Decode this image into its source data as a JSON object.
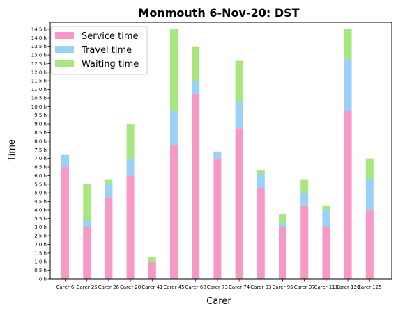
{
  "chart_data": {
    "type": "bar",
    "stacked": true,
    "title": "Monmouth 6-Nov-20: DST",
    "xlabel": "Carer",
    "ylabel": "Time",
    "ylim": [
      0,
      14.9
    ],
    "y_ticks": [
      0,
      0.5,
      1,
      1.5,
      2,
      2.5,
      3,
      3.5,
      4,
      4.5,
      5,
      5.5,
      6,
      6.5,
      7,
      7.5,
      8,
      8.5,
      9,
      9.5,
      10,
      10.5,
      11,
      11.5,
      12,
      12.5,
      13,
      13.5,
      14,
      14.5
    ],
    "y_tick_labels": [
      "0 h",
      "0.5 h",
      "1.0 h",
      "1.5 h",
      "2.0 h",
      "2.5 h",
      "3.0 h",
      "3.5 h",
      "4.0 h",
      "4.5 h",
      "5.0 h",
      "5.5 h",
      "6.0 h",
      "6.5 h",
      "7.0 h",
      "7.5 h",
      "8.0 h",
      "8.5 h",
      "9.0 h",
      "9.5 h",
      "10.0 h",
      "10.5 h",
      "11.0 h",
      "11.5 h",
      "12.0 h",
      "12.5 h",
      "13.0 h",
      "13.5 h",
      "14.0 h",
      "14.5 h"
    ],
    "categories": [
      "Carer 6",
      "Carer 25",
      "Carer 26",
      "Carer 28",
      "Carer 41",
      "Carer 45",
      "Carer 68",
      "Carer 73",
      "Carer 74",
      "Carer 93",
      "Carer 95",
      "Carer 97",
      "Carer 113",
      "Carer 120",
      "Carer 125"
    ],
    "series": [
      {
        "name": "Service time",
        "color": "#f799c6",
        "values": [
          6.5,
          3.0,
          4.75,
          6.0,
          1.0,
          7.75,
          10.75,
          7.0,
          8.75,
          5.25,
          3.0,
          4.25,
          3.0,
          9.75,
          4.0
        ]
      },
      {
        "name": "Travel time",
        "color": "#99d1f7",
        "values": [
          0.7,
          0.4,
          0.75,
          1.0,
          0.0,
          2.0,
          0.75,
          0.4,
          1.55,
          0.85,
          0.25,
          0.75,
          1.0,
          3.0,
          1.8
        ]
      },
      {
        "name": "Waiting time",
        "color": "#a8e680",
        "values": [
          0.0,
          2.1,
          0.25,
          2.0,
          0.25,
          4.75,
          2.0,
          0.0,
          2.4,
          0.2,
          0.5,
          0.75,
          0.25,
          1.75,
          1.2
        ]
      }
    ],
    "legend_position": "top-left",
    "grid": false
  }
}
